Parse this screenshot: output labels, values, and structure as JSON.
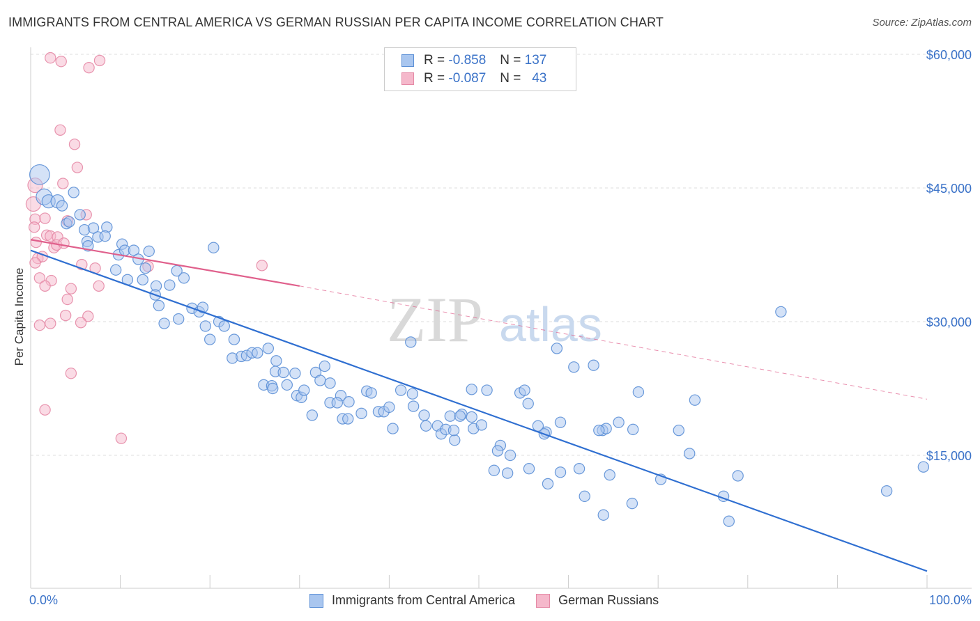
{
  "title": "IMMIGRANTS FROM CENTRAL AMERICA VS GERMAN RUSSIAN PER CAPITA INCOME CORRELATION CHART",
  "source": "Source: ZipAtlas.com",
  "watermark": {
    "zip": "ZIP",
    "atlas": "atlas"
  },
  "colors": {
    "blue_fill": "#a9c6ef",
    "blue_stroke": "#5b8fd6",
    "blue_line": "#2f6fd1",
    "pink_fill": "#f5b8cb",
    "pink_stroke": "#e58aa6",
    "pink_line": "#e0608c",
    "axis_text": "#3a72c8",
    "grid": "#dddddd"
  },
  "legend": {
    "rows": [
      {
        "r_label": "R =",
        "r_value": "-0.858",
        "n_label": "N =",
        "n_value": "137"
      },
      {
        "r_label": "R =",
        "r_value": "-0.087",
        "n_label": "N =",
        "n_value": "43"
      }
    ]
  },
  "bottom_legend": {
    "series1": "Immigrants from Central America",
    "series2": "German Russians"
  },
  "chart_data": {
    "type": "scatter",
    "title": "IMMIGRANTS FROM CENTRAL AMERICA VS GERMAN RUSSIAN PER CAPITA INCOME CORRELATION CHART",
    "xlabel": "",
    "ylabel": "Per Capita Income",
    "xlim": [
      0,
      100
    ],
    "ylim": [
      0,
      62000
    ],
    "x_tick_labels": [
      "0.0%",
      "100.0%"
    ],
    "y_ticks": [
      15000,
      30000,
      45000,
      60000
    ],
    "y_tick_labels": [
      "$15,000",
      "$30,000",
      "$45,000",
      "$60,000"
    ],
    "grid": true,
    "legend_position": "top-center",
    "series": [
      {
        "name": "Immigrants from Central America",
        "r": -0.858,
        "n": 137,
        "trend": {
          "x0": 0,
          "y0": 38000,
          "x1": 100,
          "y1": 2000
        },
        "points": [
          [
            1,
            46500,
            1.5
          ],
          [
            1.5,
            44000,
            1.2
          ],
          [
            2,
            43500,
            1
          ],
          [
            3,
            43500,
            1
          ],
          [
            4.8,
            44500,
            0.8
          ],
          [
            3.5,
            43000,
            0.8
          ],
          [
            4,
            41000,
            0.8
          ],
          [
            4.3,
            41200,
            0.8
          ],
          [
            5.5,
            42000,
            0.8
          ],
          [
            6,
            40300,
            0.8
          ],
          [
            6.3,
            39000,
            0.8
          ],
          [
            7,
            40500,
            0.8
          ],
          [
            8.5,
            40600,
            0.8
          ],
          [
            6.4,
            38500,
            0.8
          ],
          [
            7.5,
            39500,
            0.8
          ],
          [
            8.3,
            39600,
            0.8
          ],
          [
            10.2,
            38700,
            0.8
          ],
          [
            9.8,
            37500,
            0.8
          ],
          [
            10.5,
            38000,
            0.8
          ],
          [
            11.5,
            38000,
            0.8
          ],
          [
            13.2,
            37900,
            0.8
          ],
          [
            12,
            37000,
            0.8
          ],
          [
            9.5,
            35800,
            0.8
          ],
          [
            10.8,
            34700,
            0.8
          ],
          [
            12.5,
            34700,
            0.8
          ],
          [
            12.8,
            36000,
            0.8
          ],
          [
            14,
            34000,
            0.8
          ],
          [
            16.3,
            35700,
            0.8
          ],
          [
            17.1,
            34900,
            0.8
          ],
          [
            15.5,
            34100,
            0.8
          ],
          [
            13.9,
            33000,
            0.8
          ],
          [
            14.3,
            31800,
            0.8
          ],
          [
            20.4,
            38300,
            0.8
          ],
          [
            18,
            31500,
            0.8
          ],
          [
            18.8,
            31100,
            0.8
          ],
          [
            19.2,
            31600,
            0.8
          ],
          [
            16.5,
            30300,
            0.8
          ],
          [
            14.9,
            29800,
            0.8
          ],
          [
            19.5,
            29500,
            0.8
          ],
          [
            21,
            30000,
            0.8
          ],
          [
            21.6,
            29500,
            0.8
          ],
          [
            20,
            28000,
            0.8
          ],
          [
            22.7,
            28000,
            0.8
          ],
          [
            22.5,
            25900,
            0.8
          ],
          [
            23.5,
            26100,
            0.8
          ],
          [
            24.1,
            26200,
            0.8
          ],
          [
            24.7,
            26500,
            0.8
          ],
          [
            25.3,
            26500,
            0.8
          ],
          [
            26.5,
            27000,
            0.8
          ],
          [
            27.4,
            25600,
            0.8
          ],
          [
            27.3,
            24400,
            0.8
          ],
          [
            28.2,
            24300,
            0.8
          ],
          [
            29.5,
            24200,
            0.8
          ],
          [
            31.8,
            24300,
            0.8
          ],
          [
            32.8,
            25000,
            0.8
          ],
          [
            26,
            22900,
            0.8
          ],
          [
            26.9,
            22800,
            0.8
          ],
          [
            27,
            22500,
            0.8
          ],
          [
            28.6,
            22900,
            0.8
          ],
          [
            29.7,
            21700,
            0.8
          ],
          [
            30.2,
            21500,
            0.8
          ],
          [
            30.5,
            22300,
            0.8
          ],
          [
            32.3,
            23400,
            0.8
          ],
          [
            33.4,
            23100,
            0.8
          ],
          [
            34.6,
            21700,
            0.8
          ],
          [
            31.4,
            19500,
            0.8
          ],
          [
            33.4,
            20900,
            0.8
          ],
          [
            34.2,
            20900,
            0.8
          ],
          [
            35.5,
            21000,
            0.8
          ],
          [
            34.8,
            19100,
            0.8
          ],
          [
            35.4,
            19100,
            0.8
          ],
          [
            36.9,
            19700,
            0.8
          ],
          [
            37.5,
            22200,
            0.8
          ],
          [
            38,
            22000,
            0.8
          ],
          [
            38.8,
            19900,
            0.8
          ],
          [
            39.4,
            19900,
            0.8
          ],
          [
            40,
            20400,
            0.8
          ],
          [
            40.4,
            18000,
            0.8
          ],
          [
            41.3,
            22300,
            0.8
          ],
          [
            42.6,
            21900,
            0.8
          ],
          [
            42.4,
            27700,
            0.8
          ],
          [
            42.7,
            20500,
            0.8
          ],
          [
            43.9,
            19500,
            0.8
          ],
          [
            44.1,
            18300,
            0.8
          ],
          [
            45.4,
            18300,
            0.8
          ],
          [
            45.8,
            17400,
            0.8
          ],
          [
            46.3,
            17900,
            0.8
          ],
          [
            46.8,
            19400,
            0.8
          ],
          [
            47.3,
            16700,
            0.8
          ],
          [
            48.1,
            19600,
            0.8
          ],
          [
            47.9,
            19400,
            0.8
          ],
          [
            47.2,
            17800,
            0.8
          ],
          [
            49.2,
            19300,
            0.8
          ],
          [
            49.4,
            18000,
            0.8
          ],
          [
            50.3,
            18400,
            0.8
          ],
          [
            50.9,
            22300,
            0.8
          ],
          [
            49.2,
            22400,
            0.8
          ],
          [
            52.4,
            16100,
            0.8
          ],
          [
            52.1,
            15500,
            0.8
          ],
          [
            51.7,
            13300,
            0.8
          ],
          [
            53.2,
            13000,
            0.8
          ],
          [
            53.5,
            15000,
            0.8
          ],
          [
            54.6,
            22000,
            0.8
          ],
          [
            55.1,
            22300,
            0.8
          ],
          [
            55.5,
            20800,
            0.8
          ],
          [
            55.6,
            13500,
            0.8
          ],
          [
            56.6,
            18300,
            0.8
          ],
          [
            57.5,
            17600,
            0.8
          ],
          [
            57.3,
            17400,
            0.8
          ],
          [
            57.7,
            11800,
            0.8
          ],
          [
            58.7,
            27000,
            0.8
          ],
          [
            59.1,
            13100,
            0.8
          ],
          [
            59.1,
            18700,
            0.8
          ],
          [
            60.6,
            24900,
            0.8
          ],
          [
            61.2,
            13500,
            0.8
          ],
          [
            61.8,
            10400,
            0.8
          ],
          [
            62.8,
            25100,
            0.8
          ],
          [
            63.8,
            17800,
            0.8
          ],
          [
            64.2,
            18000,
            0.8
          ],
          [
            63.4,
            17800,
            0.8
          ],
          [
            63.9,
            8300,
            0.8
          ],
          [
            64.6,
            12800,
            0.8
          ],
          [
            65.6,
            18700,
            0.8
          ],
          [
            67.2,
            17900,
            0.8
          ],
          [
            67.1,
            9600,
            0.8
          ],
          [
            67.8,
            22100,
            0.8
          ],
          [
            70.3,
            12300,
            0.8
          ],
          [
            72.3,
            17800,
            0.8
          ],
          [
            73.5,
            15200,
            0.8
          ],
          [
            74.1,
            21200,
            0.8
          ],
          [
            77.3,
            10400,
            0.8
          ],
          [
            77.9,
            7600,
            0.8
          ],
          [
            78.9,
            12700,
            0.8
          ],
          [
            83.7,
            31100,
            0.8
          ],
          [
            95.5,
            11000,
            0.8
          ],
          [
            99.6,
            13700,
            0.8
          ]
        ]
      },
      {
        "name": "German Russians",
        "r": -0.087,
        "n": 43,
        "trend": {
          "x0": 0,
          "y0": 39200,
          "x1": 30,
          "y1": 34000,
          "dash_x1": 100,
          "dash_y1": 21300
        },
        "points": [
          [
            2.2,
            59600,
            0.8
          ],
          [
            3.4,
            59200,
            0.8
          ],
          [
            6.5,
            58500,
            0.8
          ],
          [
            7.7,
            59300,
            0.8
          ],
          [
            3.3,
            51500,
            0.8
          ],
          [
            4.9,
            49900,
            0.8
          ],
          [
            5.2,
            47300,
            0.8
          ],
          [
            3.6,
            45500,
            0.8
          ],
          [
            0.5,
            45300,
            1.1
          ],
          [
            0.3,
            43200,
            1.1
          ],
          [
            0.5,
            41500,
            0.8
          ],
          [
            1.6,
            41600,
            0.8
          ],
          [
            6.2,
            42000,
            0.8
          ],
          [
            4.1,
            41300,
            0.8
          ],
          [
            0.4,
            40600,
            0.8
          ],
          [
            1.8,
            39700,
            0.8
          ],
          [
            2.2,
            39600,
            0.8
          ],
          [
            3,
            39500,
            0.8
          ],
          [
            2.6,
            38300,
            0.8
          ],
          [
            2.9,
            38600,
            0.8
          ],
          [
            3.7,
            38800,
            0.8
          ],
          [
            0.6,
            38900,
            0.8
          ],
          [
            0.8,
            37100,
            0.8
          ],
          [
            1.3,
            37300,
            0.8
          ],
          [
            0.5,
            36600,
            0.8
          ],
          [
            5.7,
            36400,
            0.8
          ],
          [
            7.2,
            36000,
            0.8
          ],
          [
            13.1,
            36200,
            0.8
          ],
          [
            25.8,
            36300,
            0.8
          ],
          [
            1,
            34900,
            0.8
          ],
          [
            2.3,
            34600,
            0.8
          ],
          [
            1.6,
            34000,
            0.8
          ],
          [
            4.5,
            33700,
            0.8
          ],
          [
            7.6,
            34000,
            0.8
          ],
          [
            4.1,
            32500,
            0.8
          ],
          [
            3.9,
            30700,
            0.8
          ],
          [
            6.4,
            30600,
            0.8
          ],
          [
            1,
            29600,
            0.8
          ],
          [
            2.2,
            29800,
            0.8
          ],
          [
            5.6,
            29900,
            0.8
          ],
          [
            4.5,
            24200,
            0.8
          ],
          [
            1.6,
            20100,
            0.8
          ],
          [
            10.1,
            16900,
            0.8
          ]
        ]
      }
    ]
  }
}
